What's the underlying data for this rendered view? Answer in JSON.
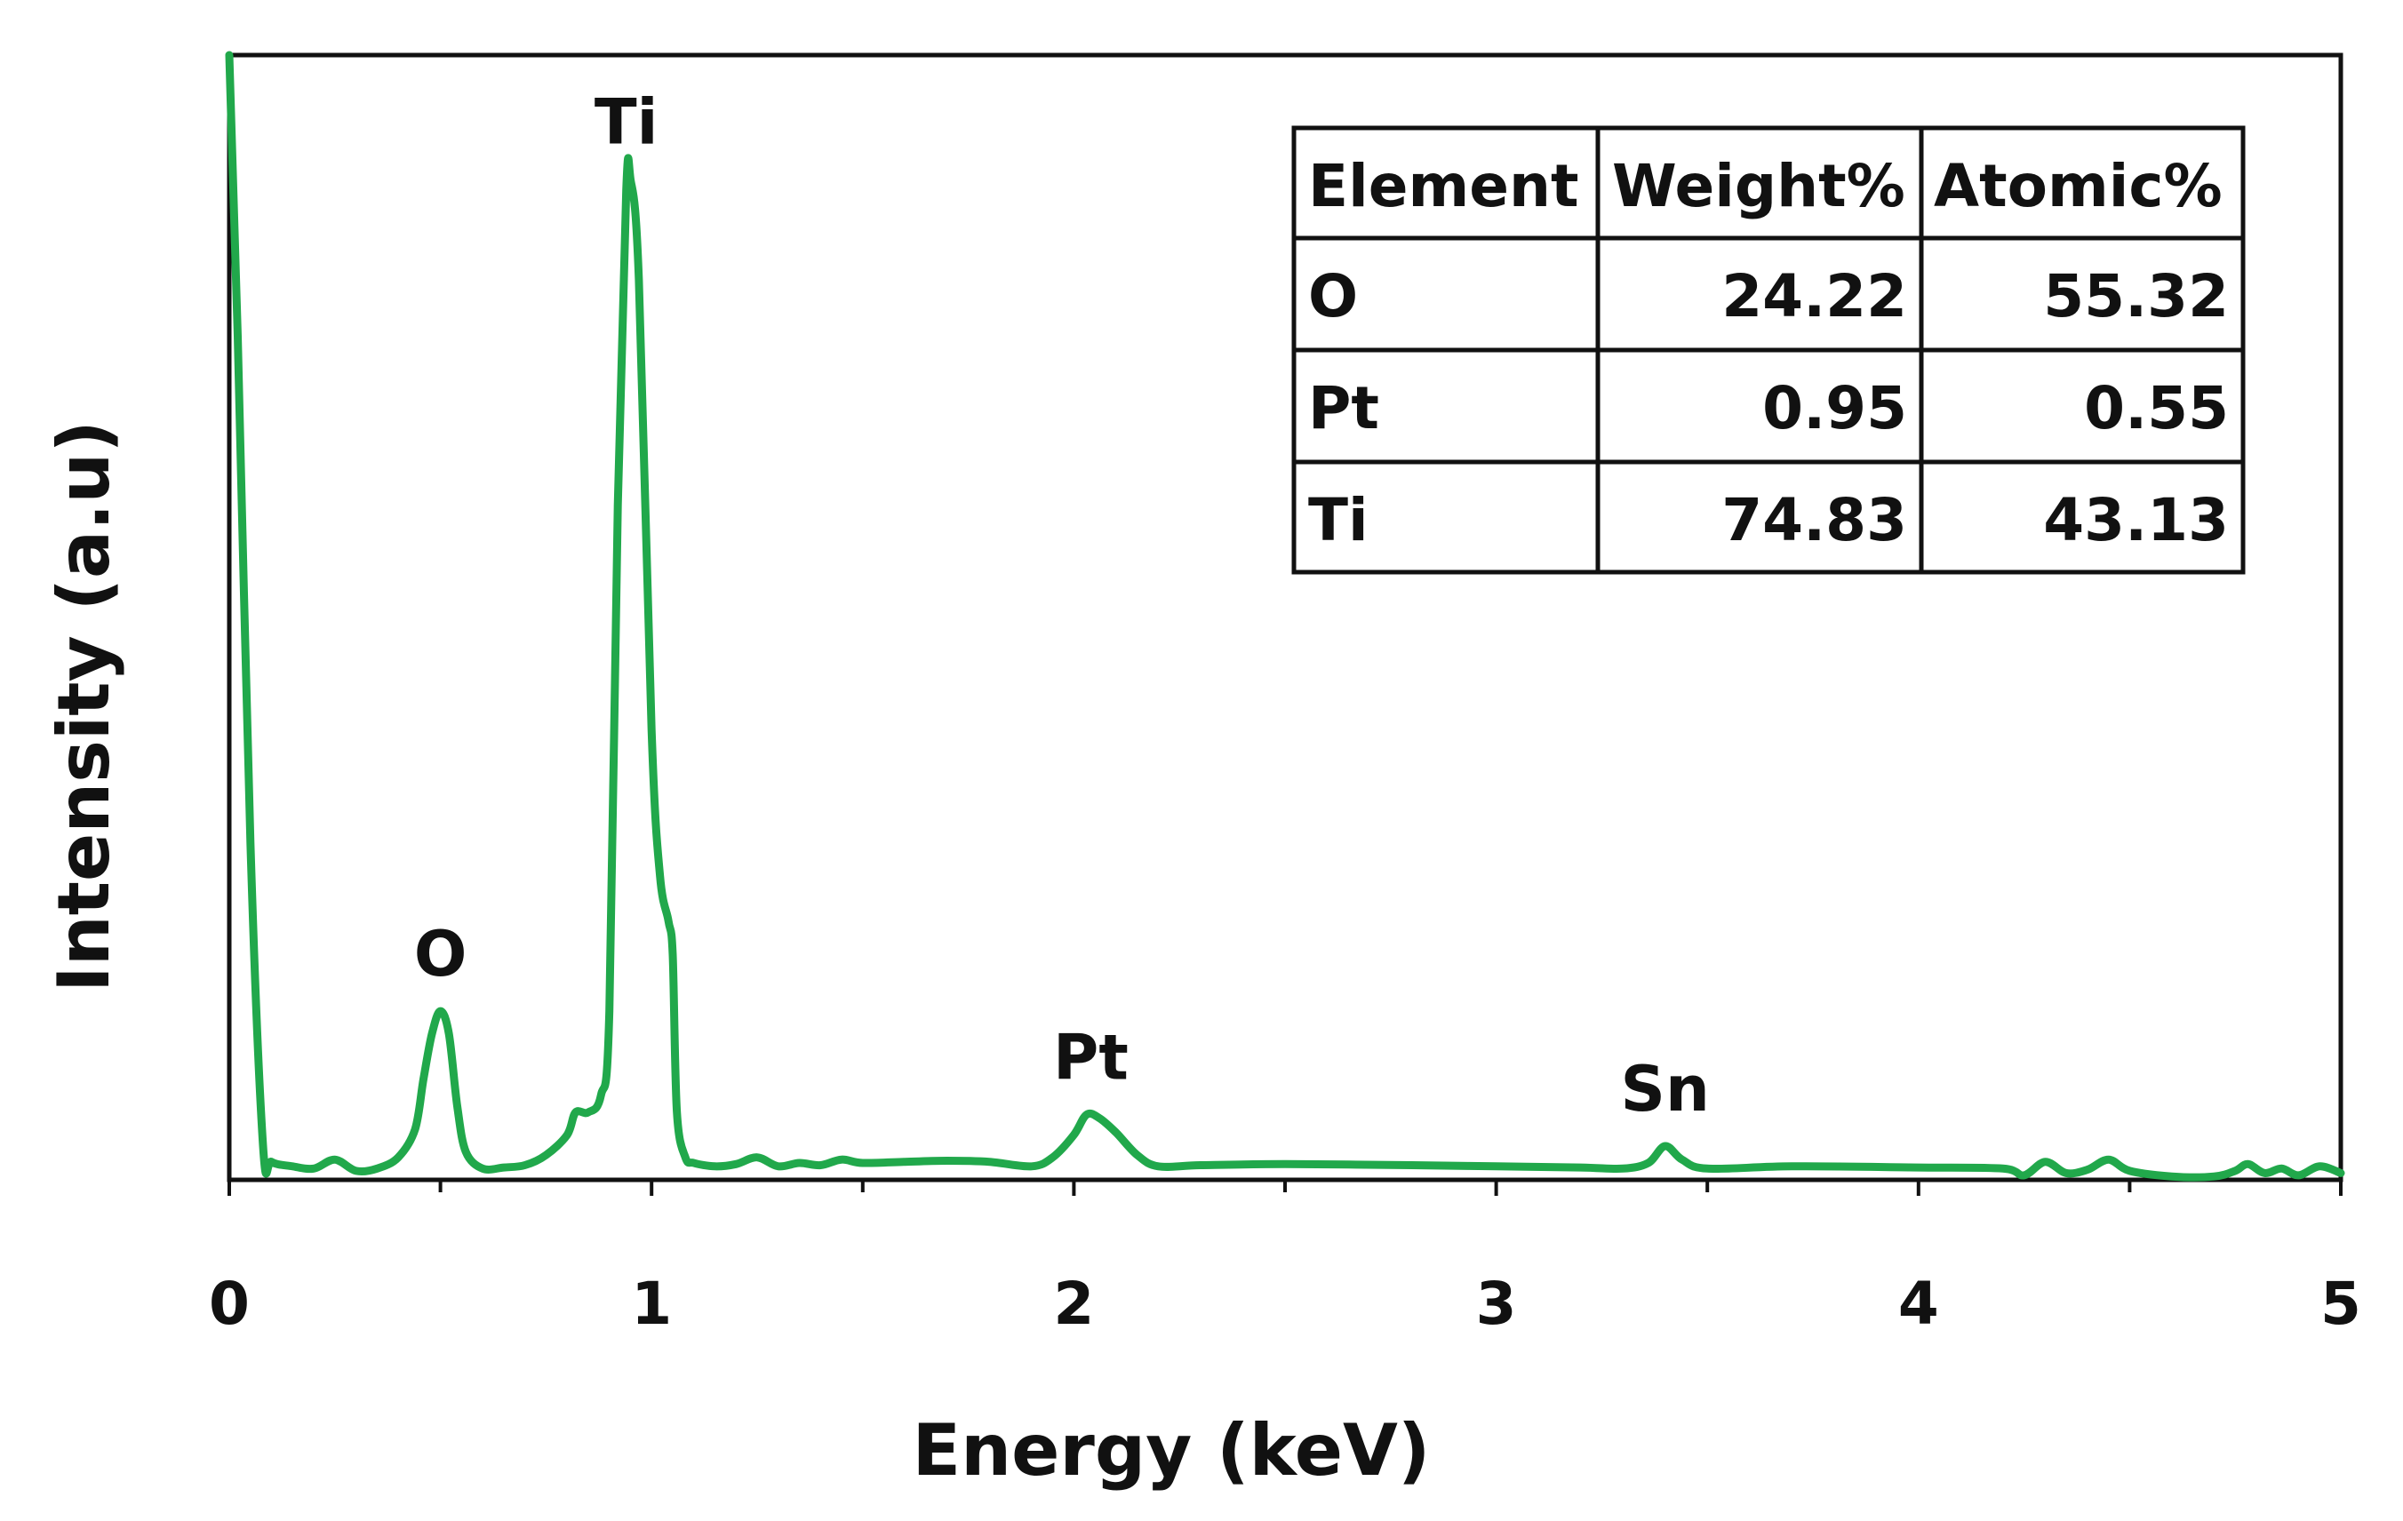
{
  "chart_data": {
    "type": "line",
    "title": "",
    "xlabel": "Energy (keV)",
    "ylabel": "Intensity (a.u)",
    "xlim": [
      0,
      5
    ],
    "ylim": [
      0,
      100
    ],
    "x_ticks": [
      "0",
      "1",
      "2",
      "3",
      "4",
      "5"
    ],
    "y_ticks": [],
    "grid": false,
    "legend": "none",
    "line_color": "#21a84b",
    "series": [
      {
        "name": "EDS spectrum",
        "x": [
          0.0,
          0.02,
          0.05,
          0.08,
          0.1,
          0.15,
          0.2,
          0.25,
          0.3,
          0.35,
          0.4,
          0.44,
          0.46,
          0.48,
          0.5,
          0.52,
          0.54,
          0.56,
          0.6,
          0.65,
          0.7,
          0.75,
          0.8,
          0.82,
          0.85,
          0.88,
          0.9,
          0.92,
          0.94,
          0.95,
          0.97,
          1.0,
          1.02,
          1.04,
          1.05,
          1.06,
          1.08,
          1.1,
          1.15,
          1.2,
          1.25,
          1.3,
          1.35,
          1.4,
          1.45,
          1.5,
          1.6,
          1.7,
          1.8,
          1.9,
          1.95,
          2.0,
          2.03,
          2.06,
          2.1,
          2.15,
          2.2,
          2.3,
          2.5,
          2.8,
          3.0,
          3.2,
          3.3,
          3.36,
          3.4,
          3.44,
          3.5,
          3.7,
          4.0,
          4.2,
          4.25,
          4.3,
          4.35,
          4.4,
          4.45,
          4.5,
          4.6,
          4.7,
          4.75,
          4.78,
          4.82,
          4.86,
          4.9,
          4.95,
          5.0
        ],
        "y": [
          100,
          75,
          30,
          3,
          1.6,
          1.2,
          1.0,
          1.8,
          0.8,
          1.0,
          2.0,
          4.5,
          9.0,
          13.0,
          15.0,
          13.0,
          6.5,
          2.5,
          1.0,
          1.1,
          1.3,
          2.2,
          4.0,
          6.0,
          6.0,
          7.5,
          15.0,
          60.0,
          88.0,
          89.0,
          80.0,
          40.0,
          27.0,
          23.0,
          20.0,
          6.0,
          2.0,
          1.5,
          1.2,
          1.4,
          2.0,
          1.2,
          1.5,
          1.3,
          1.8,
          1.5,
          1.6,
          1.7,
          1.6,
          1.2,
          2.0,
          4.0,
          5.8,
          5.5,
          4.2,
          2.2,
          1.2,
          1.3,
          1.4,
          1.3,
          1.2,
          1.1,
          1.0,
          1.5,
          3.0,
          1.8,
          1.0,
          1.2,
          1.1,
          1.0,
          0.4,
          1.6,
          0.6,
          0.9,
          1.8,
          0.8,
          0.3,
          0.3,
          0.8,
          1.4,
          0.6,
          1.0,
          0.4,
          1.2,
          0.6
        ]
      }
    ],
    "annotations": [
      {
        "text": "O",
        "x": 0.5,
        "y": 15
      },
      {
        "text": "Ti",
        "x": 0.94,
        "y": 89
      },
      {
        "text": "Pt",
        "x": 2.04,
        "y": 5.8
      },
      {
        "text": "Sn",
        "x": 3.4,
        "y": 3.0
      }
    ],
    "table": {
      "headers": [
        "Element",
        "Weight%",
        "Atomic%"
      ],
      "rows": [
        [
          "O",
          "24.22",
          "55.32"
        ],
        [
          "Pt",
          "0.95",
          "0.55"
        ],
        [
          "Ti",
          "74.83",
          "43.13"
        ]
      ]
    }
  }
}
